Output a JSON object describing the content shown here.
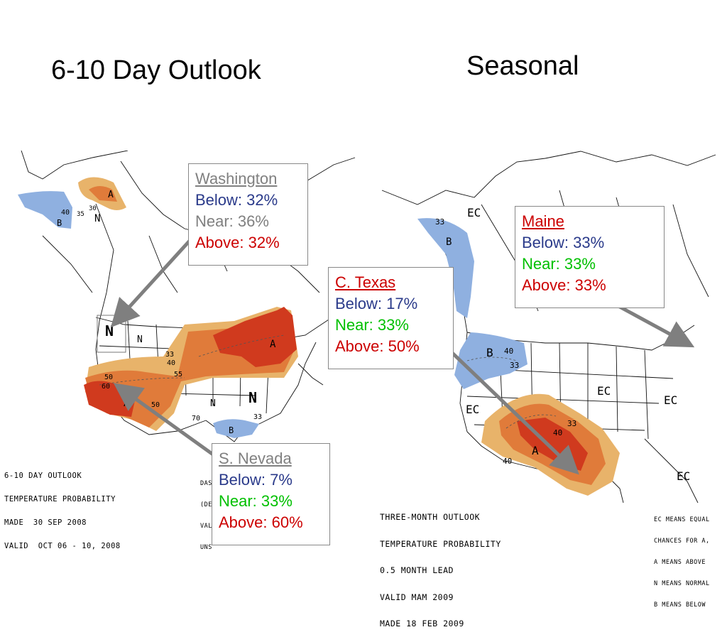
{
  "titles": {
    "left": "6-10 Day Outlook",
    "right": "Seasonal"
  },
  "callouts": {
    "washington": {
      "name": "Washington",
      "below": "Below: 32%",
      "near": "Near: 36%",
      "above": "Above: 32%"
    },
    "texas": {
      "name": "C. Texas",
      "below": "Below: 17%",
      "near": "Near: 33%",
      "above": "Above: 50%"
    },
    "maine": {
      "name": "Maine",
      "below": "Below: 33%",
      "near": "Near: 33%",
      "above": "Above: 33%"
    },
    "nevada": {
      "name": "S. Nevada",
      "below": "Below: 7%",
      "near": "Near: 33%",
      "above": "Above: 60%"
    }
  },
  "legends": {
    "left": [
      "6-10 DAY OUTLOOK",
      "TEMPERATURE PROBABILITY",
      "MADE  30 SEP 2008",
      "VALID  OCT 06 - 10, 2008"
    ],
    "left_partial": [
      "DAS",
      "(DE",
      "VAL",
      "UNS"
    ],
    "right": [
      "THREE-MONTH OUTLOOK",
      "TEMPERATURE PROBABILITY",
      "0.5 MONTH LEAD",
      "VALID MAM 2009",
      "MADE 18 FEB 2009"
    ],
    "ec": [
      "EC MEANS EQUAL",
      "CHANCES FOR A,",
      "A MEANS ABOVE",
      "N MEANS NORMAL",
      "B MEANS BELOW"
    ]
  },
  "map_labels": {
    "left": {
      "n_big_1": "N",
      "n_big_2": "N",
      "n1": "N",
      "n2": "N",
      "n3": "N",
      "a1": "A",
      "a2": "A",
      "a3": "A",
      "b1": "B",
      "b2": "B",
      "v33a": "33",
      "v33b": "33",
      "v40a": "40",
      "v40b": "40",
      "v50a": "50",
      "v50b": "50",
      "v60": "60",
      "v70": "70",
      "v55": "55",
      "v35": "35",
      "v30": "30"
    },
    "right": {
      "ec1": "EC",
      "ec2": "EC",
      "ec3": "EC",
      "ec4": "EC",
      "ec5": "EC",
      "b1": "B",
      "b2": "B",
      "a1": "A",
      "v33a": "33",
      "v33b": "33",
      "v33c": "33",
      "v40a": "40",
      "v40b": "40",
      "v40c": "40"
    }
  },
  "colors": {
    "above_light": "#e8b36a",
    "above_mid": "#e07b3a",
    "above_dark": "#d03a1e",
    "below": "#8fb0e0",
    "arrow": "#7f7f7f"
  }
}
